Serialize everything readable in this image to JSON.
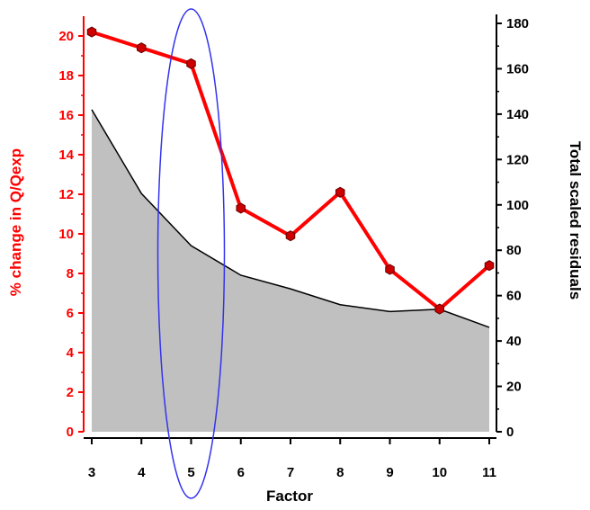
{
  "chart_data": {
    "type": "line",
    "title": "",
    "xlabel": "Factor",
    "ylabel_left": "% change in Q/Qexp",
    "ylabel_right": "Total scaled residuals",
    "x": [
      3,
      4,
      5,
      6,
      7,
      8,
      9,
      10,
      11
    ],
    "x_ticks": [
      "3",
      "4",
      "5",
      "6",
      "7",
      "8",
      "9",
      "10",
      "11"
    ],
    "ylim_left": [
      0,
      21
    ],
    "y_ticks_left": [
      "0",
      "2",
      "4",
      "6",
      "8",
      "10",
      "12",
      "14",
      "16",
      "18",
      "20"
    ],
    "ylim_right": [
      0,
      180
    ],
    "y_ticks_right": [
      "0",
      "20",
      "40",
      "60",
      "80",
      "100",
      "120",
      "140",
      "160",
      "180"
    ],
    "grid": false,
    "series": [
      {
        "axis": "left",
        "kind": "line-markers",
        "color": "#ff0000",
        "marker_color": "#cc0000",
        "values": [
          20.2,
          19.4,
          18.6,
          11.3,
          9.9,
          12.1,
          8.2,
          6.2,
          8.4
        ]
      },
      {
        "axis": "right",
        "kind": "area",
        "color": "#000000",
        "fill": "#c0c0c0",
        "values": [
          142,
          105,
          82,
          69,
          63,
          56,
          53,
          54,
          46
        ]
      }
    ],
    "annotation": {
      "shape": "ellipse",
      "color": "#3333ee",
      "around_x": 5
    },
    "colors": {
      "left_axis": "#ff0000",
      "right_axis": "#000000"
    }
  }
}
